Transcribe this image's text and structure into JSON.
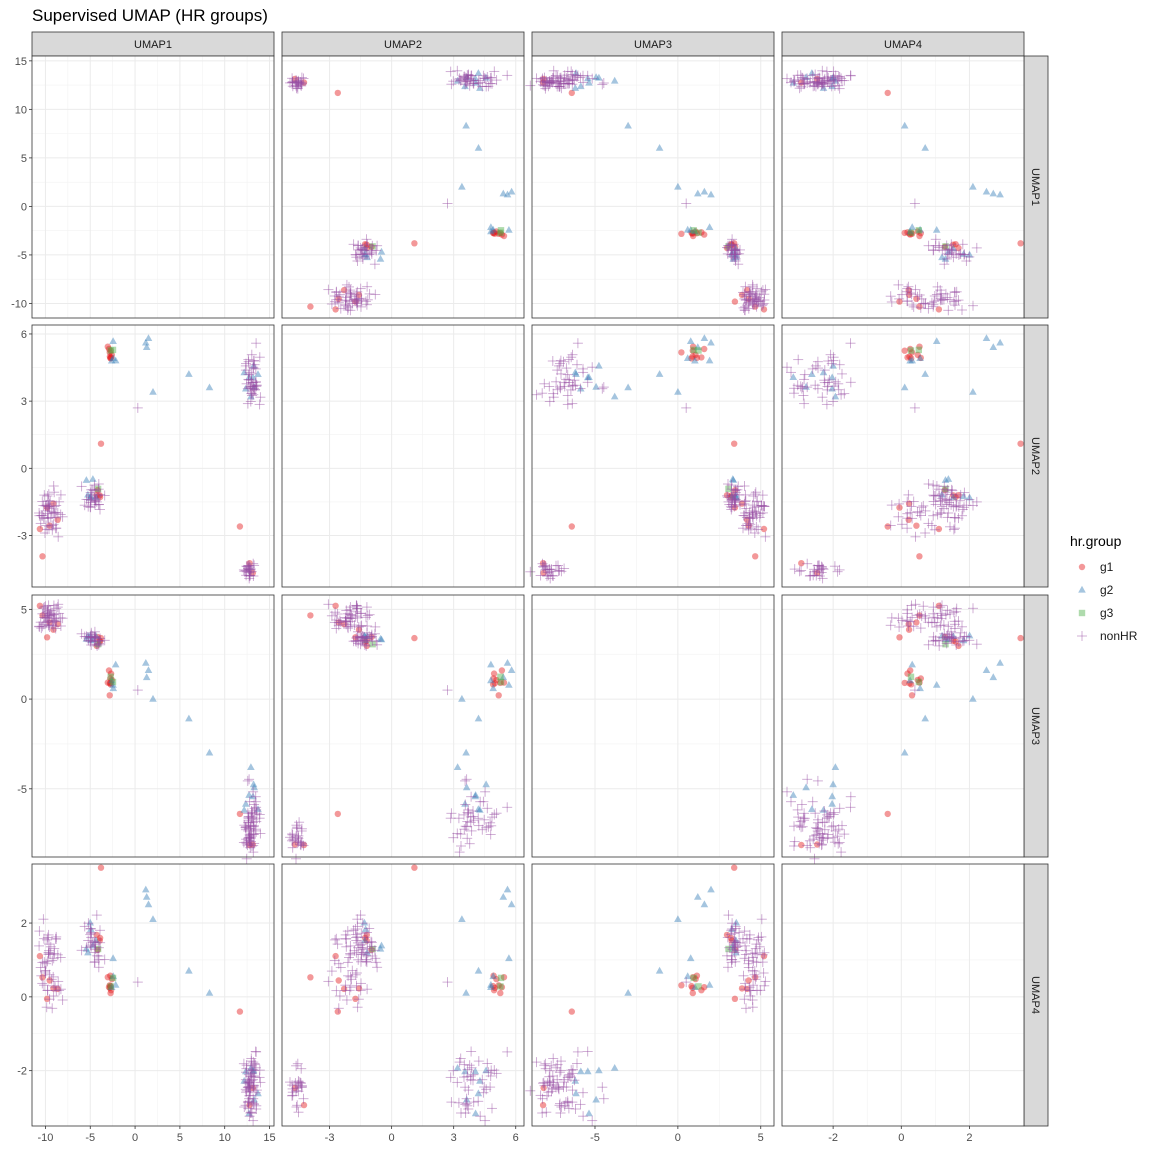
{
  "chart_data": {
    "type": "scatter",
    "title": "Supervised UMAP (HR groups)",
    "variables": [
      "UMAP1",
      "UMAP2",
      "UMAP3",
      "UMAP4"
    ],
    "legend": {
      "title": "hr.group",
      "position": "right",
      "entries": [
        {
          "key": "g1",
          "label": "g1",
          "color": "#e41a1c",
          "shape": "circle"
        },
        {
          "key": "g2",
          "label": "g2",
          "color": "#377eb8",
          "shape": "triangle"
        },
        {
          "key": "g3",
          "label": "g3",
          "color": "#4daf4a",
          "shape": "square"
        },
        {
          "key": "nonHR",
          "label": "nonHR",
          "color": "#984ea3",
          "shape": "plus"
        }
      ]
    },
    "axes": {
      "UMAP1": {
        "range": [
          -11.5,
          15.5
        ],
        "ticks": [
          -10,
          -5,
          0,
          5,
          10,
          15
        ]
      },
      "UMAP2": {
        "range": [
          -5.3,
          6.4
        ],
        "ticks": [
          -3,
          0,
          3,
          6
        ]
      },
      "UMAP3": {
        "range": [
          -8.8,
          5.8
        ],
        "ticks": [
          -5,
          0,
          5
        ]
      },
      "UMAP4": {
        "range": [
          -3.5,
          3.6
        ],
        "ticks": [
          -2,
          0,
          2
        ]
      }
    },
    "grid": true,
    "clusters": [
      {
        "group": "nonHR",
        "n": 45,
        "c": [
          13.1,
          3.8,
          -6.8,
          -2.4
        ],
        "s": [
          0.4,
          0.6,
          1.0,
          0.45
        ]
      },
      {
        "group": "g2",
        "n": 8,
        "c": [
          13.2,
          3.8,
          -6.2,
          -2.4
        ],
        "s": [
          0.4,
          0.5,
          0.9,
          0.4
        ]
      },
      {
        "group": "nonHR",
        "n": 25,
        "c": [
          12.8,
          -4.5,
          -7.6,
          -2.5
        ],
        "s": [
          0.35,
          0.2,
          0.4,
          0.35
        ]
      },
      {
        "group": "g1",
        "n": 2,
        "c": [
          12.7,
          -4.5,
          -7.9,
          -2.7
        ],
        "s": [
          0.3,
          0.15,
          0.3,
          0.3
        ]
      },
      {
        "group": "nonHR",
        "n": 50,
        "c": [
          -9.5,
          -1.9,
          4.5,
          0.9
        ],
        "s": [
          0.6,
          0.6,
          0.4,
          0.6
        ]
      },
      {
        "group": "g1",
        "n": 6,
        "c": [
          -9.5,
          -2.5,
          4.2,
          0.5
        ],
        "s": [
          0.8,
          0.6,
          0.5,
          0.6
        ]
      },
      {
        "group": "nonHR",
        "n": 30,
        "c": [
          -4.6,
          -1.3,
          3.3,
          1.4
        ],
        "s": [
          0.5,
          0.3,
          0.2,
          0.3
        ]
      },
      {
        "group": "g2",
        "n": 6,
        "c": [
          -4.8,
          -0.9,
          3.3,
          1.3
        ],
        "s": [
          0.6,
          0.4,
          0.2,
          0.3
        ]
      },
      {
        "group": "g1",
        "n": 4,
        "c": [
          -4.1,
          -1.2,
          3.2,
          1.5
        ],
        "s": [
          0.2,
          0.2,
          0.1,
          0.2
        ]
      },
      {
        "group": "g3",
        "n": 1,
        "c": [
          -4.2,
          -0.8,
          3.2,
          1.3
        ],
        "s": [
          0.1,
          0.1,
          0.1,
          0.1
        ]
      },
      {
        "group": "g1",
        "n": 9,
        "c": [
          -2.8,
          5.1,
          1.2,
          0.3
        ],
        "s": [
          0.2,
          0.2,
          0.4,
          0.2
        ]
      },
      {
        "group": "g2",
        "n": 4,
        "c": [
          -2.5,
          5.0,
          1.3,
          0.6
        ],
        "s": [
          0.3,
          0.4,
          0.5,
          0.3
        ]
      },
      {
        "group": "g3",
        "n": 2,
        "c": [
          -2.7,
          5.3,
          0.7,
          0.4
        ],
        "s": [
          0.1,
          0.1,
          0.2,
          0.1
        ]
      }
    ],
    "points": [
      {
        "group": "g2",
        "v": [
          1.2,
          5.6,
          2.0,
          2.9
        ]
      },
      {
        "group": "g2",
        "v": [
          1.5,
          5.8,
          1.6,
          2.5
        ]
      },
      {
        "group": "g2",
        "v": [
          1.3,
          5.4,
          1.2,
          2.7
        ]
      },
      {
        "group": "g2",
        "v": [
          2.0,
          3.4,
          0.0,
          2.1
        ]
      },
      {
        "group": "g2",
        "v": [
          6.0,
          4.2,
          -1.1,
          0.7
        ]
      },
      {
        "group": "g2",
        "v": [
          8.3,
          3.6,
          -3.0,
          0.1
        ]
      },
      {
        "group": "g1",
        "v": [
          -3.8,
          1.1,
          3.4,
          3.5
        ]
      },
      {
        "group": "g1",
        "v": [
          11.7,
          -2.6,
          -6.4,
          -0.4
        ]
      },
      {
        "group": "nonHR",
        "v": [
          0.3,
          2.7,
          0.5,
          0.4
        ]
      }
    ]
  }
}
